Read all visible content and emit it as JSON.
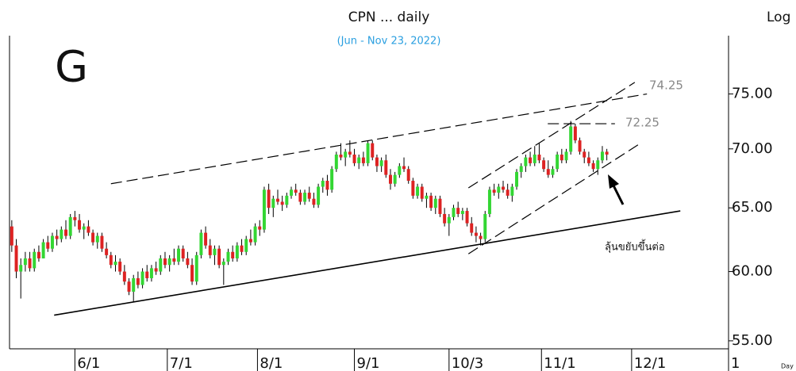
{
  "chart_data": {
    "type": "candlestick",
    "title": "CPN ... daily",
    "subtitle": "(Jun - Nov 23, 2022)",
    "panel_label": "G",
    "scale_label": "Log",
    "period_label": "Day",
    "log_scale": true,
    "up_color": "#33d633",
    "down_color": "#dd2222",
    "xlim": [
      -0.5,
      159
    ],
    "xticks": [
      {
        "value": 14,
        "label": "6/1"
      },
      {
        "value": 34.5,
        "label": "7/1"
      },
      {
        "value": 54.5,
        "label": "8/1"
      },
      {
        "value": 76,
        "label": "9/1"
      },
      {
        "value": 97,
        "label": "10/3"
      },
      {
        "value": 117.5,
        "label": "11/1"
      },
      {
        "value": 137.5,
        "label": "12/1"
      },
      {
        "value": 159,
        "label": "1"
      }
    ],
    "ylim": [
      54.45,
      80.7
    ],
    "yticks": [
      {
        "value": 55,
        "label": "55.00"
      },
      {
        "value": 60,
        "label": "60.00"
      },
      {
        "value": 65,
        "label": "65.00"
      },
      {
        "value": 70,
        "label": "70.00"
      },
      {
        "value": 75,
        "label": "75.00"
      }
    ],
    "candles": [
      [
        63.5,
        64,
        61.5,
        62
      ],
      [
        62,
        62.5,
        59.5,
        60
      ],
      [
        60,
        61,
        58,
        60.5
      ],
      [
        60.5,
        61.5,
        60,
        61
      ],
      [
        61,
        61.5,
        60,
        60.25
      ],
      [
        60.25,
        61.75,
        60,
        61.5
      ],
      [
        61.5,
        62,
        60.75,
        61
      ],
      [
        61,
        62.5,
        61,
        62.25
      ],
      [
        62.25,
        62.75,
        61.5,
        61.75
      ],
      [
        61.75,
        63,
        61.5,
        62.75
      ],
      [
        62.75,
        63.25,
        62,
        62.5
      ],
      [
        62.5,
        63.5,
        62.25,
        63.25
      ],
      [
        63.25,
        64,
        62.5,
        62.75
      ],
      [
        62.75,
        64.5,
        62.5,
        64.25
      ],
      [
        64.25,
        64.75,
        63.5,
        64
      ],
      [
        64,
        64.5,
        63,
        63.25
      ],
      [
        63.25,
        63.75,
        62.5,
        63.5
      ],
      [
        63.5,
        64,
        62.75,
        63
      ],
      [
        63,
        63.25,
        62,
        62.25
      ],
      [
        62.25,
        63,
        61.75,
        62.75
      ],
      [
        62.75,
        63,
        61.5,
        61.75
      ],
      [
        61.75,
        62.25,
        61,
        61.25
      ],
      [
        61.25,
        61.5,
        60.25,
        60.5
      ],
      [
        60.5,
        61.25,
        60,
        60.75
      ],
      [
        60.75,
        61,
        59.75,
        60
      ],
      [
        60,
        60.5,
        59,
        59.25
      ],
      [
        59.25,
        59.5,
        58.25,
        58.5
      ],
      [
        58.5,
        59.75,
        57.75,
        59.5
      ],
      [
        59.5,
        60,
        58.75,
        59
      ],
      [
        59,
        60.25,
        58.75,
        60
      ],
      [
        60,
        60.5,
        59.25,
        59.5
      ],
      [
        59.5,
        60.5,
        59.25,
        60.25
      ],
      [
        60.25,
        60.75,
        59.75,
        60
      ],
      [
        60,
        61.25,
        59.75,
        61
      ],
      [
        61,
        61.5,
        60.25,
        60.5
      ],
      [
        60.5,
        61.25,
        60,
        61
      ],
      [
        61,
        61.75,
        60.5,
        60.75
      ],
      [
        60.75,
        62,
        60.5,
        61.75
      ],
      [
        61.75,
        62,
        60.75,
        61
      ],
      [
        61,
        61.5,
        60.25,
        60.5
      ],
      [
        60.5,
        61,
        59,
        59.25
      ],
      [
        59.25,
        61.5,
        59,
        61.25
      ],
      [
        61.25,
        63.25,
        61,
        63
      ],
      [
        63,
        63.5,
        61.75,
        62
      ],
      [
        62,
        62.5,
        61,
        61.25
      ],
      [
        61.25,
        62,
        60.5,
        61.75
      ],
      [
        61.75,
        62,
        60.25,
        60.5
      ],
      [
        60.5,
        61,
        59,
        60.75
      ],
      [
        60.75,
        61.75,
        60.5,
        61.5
      ],
      [
        61.5,
        62,
        60.75,
        61
      ],
      [
        61,
        62.25,
        60.75,
        62
      ],
      [
        62,
        62.5,
        61.25,
        61.5
      ],
      [
        61.5,
        62.75,
        61.25,
        62.5
      ],
      [
        62.5,
        63.25,
        62,
        62.25
      ],
      [
        62.25,
        63.75,
        62,
        63.5
      ],
      [
        63.5,
        64,
        62.75,
        63.25
      ],
      [
        63.25,
        66.75,
        63,
        66.5
      ],
      [
        66.5,
        67,
        64.5,
        65
      ],
      [
        65,
        66,
        64.25,
        65.75
      ],
      [
        65.75,
        66.5,
        65.25,
        65.5
      ],
      [
        65.5,
        66,
        64.75,
        65.25
      ],
      [
        65.25,
        66.25,
        65,
        66
      ],
      [
        66,
        66.75,
        65.75,
        66.5
      ],
      [
        66.5,
        67,
        66,
        66.25
      ],
      [
        66.25,
        66.5,
        65.25,
        65.5
      ],
      [
        65.5,
        66.5,
        65.25,
        66.25
      ],
      [
        66.25,
        66.75,
        65.5,
        65.75
      ],
      [
        65.75,
        66.25,
        65,
        65.25
      ],
      [
        65.25,
        67,
        65,
        66.75
      ],
      [
        66.75,
        67.5,
        66.25,
        67.25
      ],
      [
        67.25,
        67.75,
        66,
        66.5
      ],
      [
        66.5,
        68.5,
        66.25,
        68.25
      ],
      [
        68.25,
        69.75,
        68,
        69.5
      ],
      [
        69.5,
        70.5,
        69,
        69.25
      ],
      [
        69.25,
        70,
        68.5,
        69.75
      ],
      [
        69.75,
        70.75,
        69.25,
        69.5
      ],
      [
        69.5,
        70,
        68.5,
        68.75
      ],
      [
        68.75,
        69.5,
        68.25,
        69.25
      ],
      [
        69.25,
        69.75,
        68.5,
        68.75
      ],
      [
        68.75,
        70.75,
        68.5,
        70.5
      ],
      [
        70.5,
        70.75,
        69,
        69.25
      ],
      [
        69.25,
        69.5,
        68,
        68.5
      ],
      [
        68.5,
        69.25,
        68,
        69
      ],
      [
        69,
        69.5,
        67.5,
        67.75
      ],
      [
        67.75,
        68.25,
        66.5,
        67
      ],
      [
        67,
        68,
        66.75,
        67.75
      ],
      [
        67.75,
        68.75,
        67.5,
        68.5
      ],
      [
        68.5,
        69.25,
        68,
        68.25
      ],
      [
        68.25,
        68.5,
        67,
        67.25
      ],
      [
        67.25,
        67.5,
        65.75,
        66
      ],
      [
        66,
        67,
        65.75,
        66.75
      ],
      [
        66.75,
        67,
        65.5,
        65.75
      ],
      [
        65.75,
        66.25,
        65,
        66
      ],
      [
        66,
        66.25,
        64.75,
        65
      ],
      [
        65,
        66,
        64.5,
        65.75
      ],
      [
        65.75,
        66,
        64.25,
        64.5
      ],
      [
        64.5,
        65,
        63.5,
        63.75
      ],
      [
        63.75,
        64.5,
        62.75,
        64.25
      ],
      [
        64.25,
        65.25,
        64,
        65
      ],
      [
        65,
        65.5,
        64.25,
        64.5
      ],
      [
        64.5,
        65,
        64,
        64.75
      ],
      [
        64.75,
        65,
        63.5,
        63.75
      ],
      [
        63.75,
        64.25,
        62.75,
        63
      ],
      [
        63,
        63.5,
        62.25,
        62.75
      ],
      [
        62.75,
        63,
        62,
        62.5
      ],
      [
        62.5,
        64.75,
        62.25,
        64.5
      ],
      [
        64.5,
        66.75,
        64.25,
        66.5
      ],
      [
        66.5,
        67,
        66,
        66.25
      ],
      [
        66.25,
        67,
        65.75,
        66.75
      ],
      [
        66.75,
        67.25,
        66.25,
        66.5
      ],
      [
        66.5,
        67,
        65.75,
        66
      ],
      [
        66,
        67,
        65.5,
        66.75
      ],
      [
        66.75,
        68.25,
        66.5,
        68
      ],
      [
        68,
        68.75,
        67.5,
        68.5
      ],
      [
        68.5,
        69.5,
        68,
        69.25
      ],
      [
        69.25,
        69.75,
        68.5,
        68.75
      ],
      [
        68.75,
        70.25,
        68.5,
        69.5
      ],
      [
        69.5,
        70.5,
        68.75,
        69
      ],
      [
        69,
        69.25,
        68,
        68.25
      ],
      [
        68.25,
        69,
        67.5,
        67.75
      ],
      [
        67.75,
        68.5,
        67.5,
        68.25
      ],
      [
        68.25,
        69.75,
        68,
        69.5
      ],
      [
        69.5,
        70,
        68.75,
        69
      ],
      [
        69,
        70,
        68.75,
        69.75
      ],
      [
        69.75,
        72.5,
        69.5,
        72
      ],
      [
        72,
        72.25,
        70.5,
        70.75
      ],
      [
        70.75,
        71,
        69.5,
        69.75
      ],
      [
        69.75,
        70,
        68.75,
        69.25
      ],
      [
        69.25,
        69.75,
        68.5,
        68.75
      ],
      [
        68.75,
        69,
        68,
        68.25
      ],
      [
        68.25,
        69.25,
        67.75,
        69
      ],
      [
        69,
        70.25,
        68.75,
        69.75
      ],
      [
        69.75,
        70,
        69,
        69.5
      ]
    ],
    "trendlines": [
      {
        "x": [
          9.4,
          148.3
        ],
        "y": [
          56.8,
          64.75
        ],
        "dashed": false
      },
      {
        "x": [
          22,
          140.9
        ],
        "y": [
          67,
          75
        ],
        "dashed": true
      },
      {
        "x": [
          101.3,
          138.2
        ],
        "y": [
          66.65,
          76.1
        ],
        "dashed": true
      },
      {
        "x": [
          101.3,
          139.1
        ],
        "y": [
          61.35,
          70.4
        ],
        "dashed": true
      },
      {
        "x": [
          118.9,
          133.8
        ],
        "y": [
          72.25,
          72.25
        ],
        "dashed": true
      }
    ],
    "annotations": [
      "74.25",
      "72.25",
      "ลุ้นขยับขึ้นต่อ"
    ]
  }
}
